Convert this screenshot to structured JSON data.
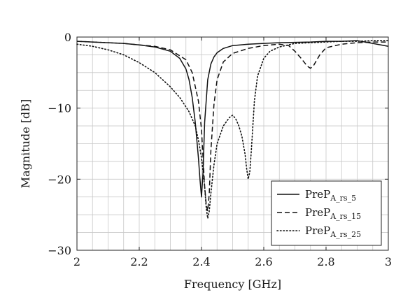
{
  "chart_data": {
    "type": "line",
    "title": "",
    "xlabel": "Frequency [GHz]",
    "ylabel": "Magnitude [dB]",
    "xlim": [
      2,
      3
    ],
    "ylim": [
      -30,
      0
    ],
    "x_ticks": [
      2,
      2.2,
      2.4,
      2.6,
      2.8,
      3
    ],
    "x_tick_labels": [
      "2",
      "2.2",
      "2.4",
      "2.6",
      "2.8",
      "3"
    ],
    "y_ticks": [
      0,
      -10,
      -20,
      -30
    ],
    "y_tick_labels": [
      "0",
      "−10",
      "−20",
      "−30"
    ],
    "minor_grid_x_step": 0.05,
    "minor_grid_y_step": 2.5,
    "grid": true,
    "legend_position": "bottom-right",
    "series": [
      {
        "name": "PreP",
        "name_sub": "A_rs_5",
        "style": "solid",
        "x": [
          2.0,
          2.05,
          2.1,
          2.15,
          2.2,
          2.25,
          2.3,
          2.33,
          2.35,
          2.36,
          2.37,
          2.38,
          2.39,
          2.395,
          2.4,
          2.405,
          2.41,
          2.42,
          2.43,
          2.44,
          2.45,
          2.47,
          2.5,
          2.55,
          2.6,
          2.65,
          2.7,
          2.75,
          2.8,
          2.85,
          2.9,
          2.95,
          3.0
        ],
        "y": [
          -0.6,
          -0.7,
          -0.8,
          -0.9,
          -1.1,
          -1.4,
          -2.0,
          -3.0,
          -4.5,
          -6.0,
          -8.5,
          -12.0,
          -17.0,
          -20.0,
          -22.5,
          -19.0,
          -12.0,
          -6.0,
          -3.8,
          -2.8,
          -2.2,
          -1.6,
          -1.2,
          -1.0,
          -0.9,
          -0.8,
          -0.75,
          -0.7,
          -0.6,
          -0.6,
          -0.5,
          -0.9,
          -1.3
        ]
      },
      {
        "name": "PreP",
        "name_sub": "A_rs_15",
        "style": "dashed",
        "x": [
          2.0,
          2.05,
          2.1,
          2.15,
          2.2,
          2.25,
          2.3,
          2.35,
          2.37,
          2.39,
          2.4,
          2.405,
          2.41,
          2.415,
          2.42,
          2.425,
          2.43,
          2.44,
          2.45,
          2.47,
          2.5,
          2.55,
          2.6,
          2.65,
          2.68,
          2.7,
          2.72,
          2.74,
          2.75,
          2.76,
          2.78,
          2.8,
          2.85,
          2.9,
          2.95,
          3.0
        ],
        "y": [
          -0.6,
          -0.7,
          -0.8,
          -0.9,
          -1.1,
          -1.3,
          -1.8,
          -3.2,
          -5.0,
          -9.0,
          -13.0,
          -17.0,
          -21.0,
          -23.5,
          -24.5,
          -22.0,
          -16.0,
          -9.5,
          -6.0,
          -3.5,
          -2.3,
          -1.6,
          -1.2,
          -1.0,
          -1.2,
          -2.0,
          -3.0,
          -4.1,
          -4.4,
          -4.0,
          -2.5,
          -1.5,
          -1.0,
          -0.8,
          -0.7,
          -0.7
        ]
      },
      {
        "name": "PreP",
        "name_sub": "A_rs_25",
        "style": "dotted",
        "x": [
          2.0,
          2.05,
          2.1,
          2.15,
          2.2,
          2.25,
          2.3,
          2.33,
          2.36,
          2.38,
          2.39,
          2.4,
          2.41,
          2.415,
          2.42,
          2.425,
          2.43,
          2.44,
          2.45,
          2.47,
          2.49,
          2.5,
          2.51,
          2.52,
          2.53,
          2.54,
          2.545,
          2.55,
          2.555,
          2.56,
          2.565,
          2.57,
          2.58,
          2.6,
          2.62,
          2.65,
          2.7,
          2.75,
          2.8,
          2.85,
          2.9,
          2.95,
          3.0
        ],
        "y": [
          -1.0,
          -1.3,
          -1.8,
          -2.5,
          -3.6,
          -5.0,
          -7.0,
          -8.5,
          -10.5,
          -12.5,
          -14.5,
          -17.0,
          -21.0,
          -24.0,
          -25.5,
          -24.5,
          -22.0,
          -18.0,
          -15.0,
          -12.5,
          -11.3,
          -11.0,
          -11.5,
          -12.5,
          -14.0,
          -16.5,
          -18.5,
          -20.0,
          -19.0,
          -16.0,
          -12.5,
          -9.0,
          -5.5,
          -3.0,
          -2.0,
          -1.4,
          -0.9,
          -0.8,
          -0.7,
          -0.6,
          -0.6,
          -0.5,
          -0.5
        ]
      }
    ]
  }
}
